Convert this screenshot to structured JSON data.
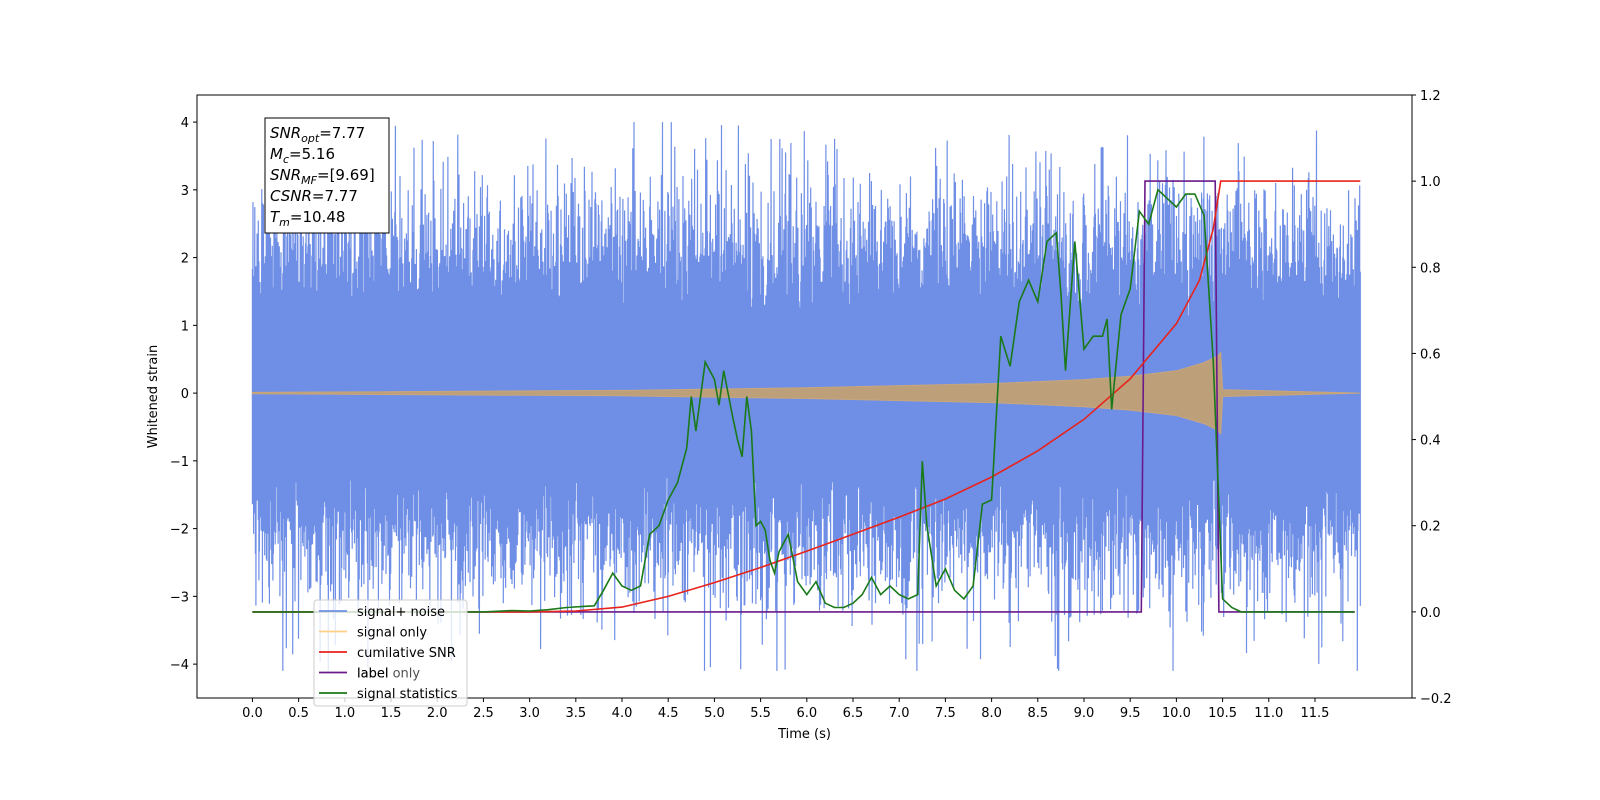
{
  "chart_data": {
    "type": "line",
    "title": "",
    "xlabel": "Time (s)",
    "ylabel": "Whitened strain",
    "xlim": [
      -0.6,
      12.55
    ],
    "ylim": [
      -4.5,
      4.4
    ],
    "y2lim": [
      -0.2,
      1.2
    ],
    "x_ticks": [
      "0.0",
      "0.5",
      "1.0",
      "1.5",
      "2.0",
      "2.5",
      "3.0",
      "3.5",
      "4.0",
      "4.5",
      "5.0",
      "5.5",
      "6.0",
      "6.5",
      "7.0",
      "7.5",
      "8.0",
      "8.5",
      "9.0",
      "9.5",
      "10.0",
      "10.5",
      "11.0",
      "11.5"
    ],
    "y_ticks": [
      "−4",
      "−3",
      "−2",
      "−1",
      "0",
      "1",
      "2",
      "3",
      "4"
    ],
    "y2_ticks": [
      "−0.2",
      "0.0",
      "0.2",
      "0.4",
      "0.6",
      "0.8",
      "1.0",
      "1.2"
    ],
    "annotation": [
      {
        "base": "SNR",
        "sub": "opt",
        "value": "=7.77"
      },
      {
        "base": "M",
        "sub": "c",
        "value": "=5.16"
      },
      {
        "base": "SNR",
        "sub": "MF",
        "value": "=[9.69]"
      },
      {
        "base": "CSNR",
        "sub": "",
        "value": "=7.77"
      },
      {
        "base": "T",
        "sub": "m",
        "value": "=10.48"
      }
    ],
    "legend_position": "lower-left",
    "series": [
      {
        "name": "signal+ noise",
        "color": "#6f8fe6",
        "axis": "left",
        "kind": "noise",
        "x_range": [
          0,
          11.99
        ],
        "typical_amplitude": 1.8,
        "peak": 4.0,
        "trough": -4.1
      },
      {
        "name": "signal only",
        "color": "#ffb74d",
        "axis": "left",
        "kind": "chirp",
        "x_range": [
          0,
          11.99
        ],
        "envelope": [
          [
            0,
            0.01
          ],
          [
            4,
            0.04
          ],
          [
            6,
            0.08
          ],
          [
            8,
            0.14
          ],
          [
            9,
            0.2
          ],
          [
            9.5,
            0.25
          ],
          [
            10,
            0.33
          ],
          [
            10.3,
            0.45
          ],
          [
            10.45,
            0.55
          ],
          [
            10.48,
            0.6
          ],
          [
            10.5,
            0.05
          ],
          [
            11.99,
            0.0
          ]
        ]
      },
      {
        "name": "cumilative SNR",
        "color": "#e8231b",
        "axis": "right",
        "x": [
          0,
          3.0,
          3.5,
          4.0,
          4.5,
          5.0,
          5.5,
          6.0,
          6.5,
          7.0,
          7.5,
          8.0,
          8.5,
          9.0,
          9.5,
          10.0,
          10.25,
          10.4,
          10.48,
          11.99
        ],
        "y": [
          0,
          0,
          0.002,
          0.011,
          0.036,
          0.068,
          0.103,
          0.141,
          0.18,
          0.22,
          0.262,
          0.313,
          0.374,
          0.447,
          0.541,
          0.669,
          0.77,
          0.89,
          1.0,
          1.0
        ]
      },
      {
        "name": "label",
        "color": "#6a1a8a",
        "axis": "right",
        "x": [
          0,
          9.62,
          9.66,
          10.42,
          10.46,
          11.93
        ],
        "y": [
          0,
          0,
          1,
          1,
          0,
          0
        ]
      },
      {
        "name": "label only",
        "color": "#6a1a8a",
        "axis": "right",
        "x": [],
        "y": []
      },
      {
        "name": "signal statistics",
        "color": "#1a7a1a",
        "axis": "right",
        "x": [
          0,
          1.0,
          2.0,
          2.5,
          2.8,
          3.0,
          3.2,
          3.4,
          3.6,
          3.7,
          3.8,
          3.9,
          4.0,
          4.1,
          4.2,
          4.3,
          4.4,
          4.5,
          4.6,
          4.7,
          4.75,
          4.8,
          4.9,
          5.0,
          5.05,
          5.1,
          5.2,
          5.25,
          5.3,
          5.35,
          5.4,
          5.45,
          5.5,
          5.55,
          5.6,
          5.65,
          5.7,
          5.75,
          5.8,
          5.9,
          6.0,
          6.1,
          6.2,
          6.3,
          6.4,
          6.5,
          6.6,
          6.7,
          6.8,
          6.9,
          7.0,
          7.1,
          7.2,
          7.25,
          7.3,
          7.4,
          7.5,
          7.6,
          7.7,
          7.8,
          7.9,
          8.0,
          8.1,
          8.2,
          8.3,
          8.4,
          8.5,
          8.6,
          8.7,
          8.75,
          8.8,
          8.9,
          9.0,
          9.1,
          9.2,
          9.25,
          9.3,
          9.4,
          9.5,
          9.6,
          9.7,
          9.8,
          9.9,
          10.0,
          10.1,
          10.2,
          10.3,
          10.4,
          10.5,
          10.55,
          10.6,
          10.7,
          10.8,
          10.9,
          11.0,
          11.93
        ],
        "y": [
          0,
          0,
          0,
          0,
          0.003,
          0.002,
          0.005,
          0.01,
          0.013,
          0.014,
          0.05,
          0.09,
          0.06,
          0.05,
          0.06,
          0.18,
          0.2,
          0.26,
          0.3,
          0.38,
          0.5,
          0.42,
          0.58,
          0.54,
          0.48,
          0.56,
          0.45,
          0.4,
          0.36,
          0.5,
          0.42,
          0.2,
          0.21,
          0.19,
          0.12,
          0.09,
          0.14,
          0.16,
          0.18,
          0.07,
          0.04,
          0.07,
          0.02,
          0.01,
          0.01,
          0.02,
          0.04,
          0.08,
          0.04,
          0.06,
          0.04,
          0.03,
          0.04,
          0.35,
          0.2,
          0.06,
          0.1,
          0.05,
          0.03,
          0.06,
          0.25,
          0.26,
          0.64,
          0.57,
          0.72,
          0.77,
          0.72,
          0.86,
          0.88,
          0.74,
          0.56,
          0.86,
          0.61,
          0.64,
          0.64,
          0.68,
          0.47,
          0.69,
          0.75,
          0.93,
          0.9,
          0.98,
          0.96,
          0.94,
          0.97,
          0.97,
          0.92,
          0.58,
          0.03,
          0.02,
          0.01,
          0.0,
          0.0,
          0.0,
          0.0,
          0.0
        ]
      }
    ]
  }
}
